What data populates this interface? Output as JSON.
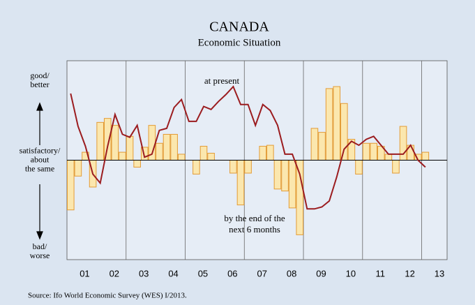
{
  "chart_data": {
    "type": "bar-line",
    "title": "CANADA",
    "subtitle": "Economic Situation",
    "source": "Source: Ifo World Economic Survey (WES) I/2013.",
    "x": [
      2001.125,
      2001.375,
      2001.625,
      2001.875,
      2002.125,
      2002.375,
      2002.625,
      2002.875,
      2003.125,
      2003.375,
      2003.625,
      2003.875,
      2004.125,
      2004.375,
      2004.625,
      2004.875,
      2005.125,
      2005.375,
      2005.625,
      2005.875,
      2006.125,
      2006.375,
      2006.625,
      2006.875,
      2007.125,
      2007.375,
      2007.625,
      2007.875,
      2008.125,
      2008.375,
      2008.625,
      2008.875,
      2009.125,
      2009.375,
      2009.625,
      2009.875,
      2010.125,
      2010.375,
      2010.625,
      2010.875,
      2011.125,
      2011.375,
      2011.625,
      2011.875,
      2012.125,
      2012.375,
      2012.625,
      2012.875,
      2013.125
    ],
    "xlim": [
      2001,
      2013.86
    ],
    "xticks": [
      {
        "value": 2001.6,
        "label": "01"
      },
      {
        "value": 2002.6,
        "label": "02"
      },
      {
        "value": 2003.6,
        "label": "03"
      },
      {
        "value": 2004.6,
        "label": "04"
      },
      {
        "value": 2005.6,
        "label": "05"
      },
      {
        "value": 2006.6,
        "label": "06"
      },
      {
        "value": 2007.6,
        "label": "07"
      },
      {
        "value": 2008.6,
        "label": "08"
      },
      {
        "value": 2009.6,
        "label": "09"
      },
      {
        "value": 2010.6,
        "label": "10"
      },
      {
        "value": 2011.6,
        "label": "11"
      },
      {
        "value": 2012.6,
        "label": "12"
      },
      {
        "value": 2013.6,
        "label": "13"
      }
    ],
    "xgrid": [
      2003,
      2005,
      2007,
      2009,
      2011,
      2013
    ],
    "ylim": [
      -100,
      100
    ],
    "yticks": [
      {
        "value": 80,
        "label": [
          "good/",
          "better"
        ]
      },
      {
        "value": 0,
        "label": [
          "satisfactory/",
          "about",
          "the same"
        ]
      },
      {
        "value": -92,
        "label": [
          "bad/",
          "worse"
        ]
      }
    ],
    "series": [
      {
        "name": [
          "by the end of the",
          "next 6 months"
        ],
        "kind": "bar",
        "color": "#fbe7ae",
        "edge": "#e39b35",
        "values": [
          -50,
          -16,
          8,
          -27,
          38,
          42,
          35,
          8,
          24,
          -7,
          13,
          35,
          17,
          26,
          26,
          6,
          0,
          -14,
          14,
          7,
          0,
          0,
          -13,
          -45,
          -13,
          0,
          14,
          15,
          -29,
          -31,
          -48,
          -75,
          0,
          32,
          28,
          72,
          74,
          57,
          21,
          -14,
          17,
          17,
          14,
          6,
          -13,
          34,
          15,
          6,
          8
        ]
      },
      {
        "name": [
          "at present"
        ],
        "kind": "line",
        "color": "#9b1c1f",
        "values": [
          67,
          34,
          14,
          -14,
          -23,
          14,
          46,
          26,
          23,
          35,
          3,
          6,
          30,
          32,
          53,
          61,
          39,
          39,
          54,
          51,
          59,
          66,
          74,
          56,
          56,
          35,
          56,
          50,
          35,
          6,
          6,
          -14,
          -49,
          -49,
          -47,
          -41,
          -17,
          11,
          19,
          15,
          21,
          24,
          15,
          6,
          6,
          6,
          15,
          0,
          -7
        ]
      }
    ]
  }
}
